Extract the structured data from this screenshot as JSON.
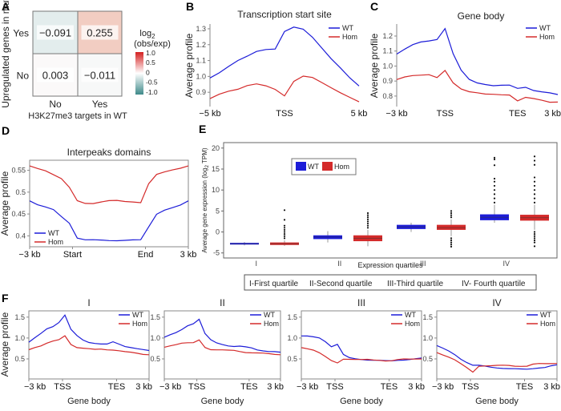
{
  "panels": {
    "a": "A",
    "b": "B",
    "c": "C",
    "d": "D",
    "e": "E",
    "f": "F"
  },
  "colors": {
    "wt": "#1c1cd8",
    "hom": "#d42a2a",
    "axis": "#8a8a8a"
  },
  "chart_data": [
    {
      "panel": "A",
      "type": "heatmap",
      "ylabel": "Upregulated genes in mut",
      "xlabel": "H3K27me3 targets in WT",
      "rows": [
        "Yes",
        "No"
      ],
      "cols": [
        "No",
        "Yes"
      ],
      "values": [
        [
          "−0.091",
          "0.255"
        ],
        [
          "0.003",
          "−0.011"
        ]
      ],
      "colorbar": {
        "title_main": "log",
        "title_sub": "2",
        "title_paren": "(obs/exp)",
        "ticks": [
          "1.0",
          "0.5",
          "0",
          "-0.5",
          "-1.0"
        ],
        "range": [
          -1,
          1
        ],
        "low": "#3e8a8a",
        "mid": "#ffffff",
        "high": "#d42020"
      }
    },
    {
      "panel": "B",
      "type": "line",
      "title": "Transcription start site",
      "ylabel": "Average profile",
      "xticks": [
        "−5 kb",
        "TSS",
        "5 kb"
      ],
      "yticks": [
        "1.3",
        "1.2",
        "1.1",
        "1.0",
        "0.9"
      ],
      "ylim": [
        0.81,
        1.33
      ],
      "legend": "top-right",
      "series": [
        {
          "name": "WT",
          "y": [
            0.99,
            1.02,
            1.06,
            1.1,
            1.13,
            1.16,
            1.17,
            1.17,
            1.28,
            1.31,
            1.3,
            1.25,
            1.18,
            1.11,
            1.05,
            0.99,
            0.94
          ]
        },
        {
          "name": "Hom",
          "y": [
            0.86,
            0.89,
            0.91,
            0.92,
            0.94,
            0.95,
            0.94,
            0.92,
            0.88,
            0.97,
            1.0,
            0.99,
            0.96,
            0.93,
            0.9,
            0.87,
            0.84
          ]
        }
      ]
    },
    {
      "panel": "C",
      "type": "line",
      "title": "Gene body",
      "ylabel": "Average profile",
      "xticks": [
        "−3 kb",
        "TSS",
        "TES",
        "3 kb"
      ],
      "yticks": [
        "1.2",
        "1.1",
        "1.0",
        "0.9",
        "0.8"
      ],
      "ylim": [
        0.73,
        1.28
      ],
      "legend": "top-right",
      "series": [
        {
          "name": "WT",
          "y": [
            1.08,
            1.11,
            1.14,
            1.16,
            1.17,
            1.18,
            1.25,
            1.08,
            0.97,
            0.91,
            0.89,
            0.88,
            0.87,
            0.87,
            0.87,
            0.85,
            0.86,
            0.84,
            0.83,
            0.82,
            0.81
          ]
        },
        {
          "name": "Hom",
          "y": [
            0.91,
            0.93,
            0.94,
            0.94,
            0.94,
            0.92,
            0.97,
            0.89,
            0.85,
            0.83,
            0.82,
            0.81,
            0.81,
            0.81,
            0.81,
            0.77,
            0.79,
            0.78,
            0.77,
            0.76,
            0.76
          ]
        }
      ]
    },
    {
      "panel": "D",
      "type": "line",
      "title": "Interpeaks domains",
      "ylabel": "Average profile",
      "xticks": [
        "−3 kb",
        "Start",
        "End",
        "3 kb"
      ],
      "yticks": [
        "0.55",
        "0.5",
        "0.45",
        "0.4"
      ],
      "ylim": [
        0.375,
        0.573
      ],
      "legend": "bottom-left",
      "series": [
        {
          "name": "WT",
          "y": [
            0.48,
            0.47,
            0.465,
            0.46,
            0.445,
            0.43,
            0.395,
            0.39,
            0.39,
            0.39,
            0.39,
            0.39,
            0.39,
            0.39,
            0.39,
            0.42,
            0.45,
            0.46,
            0.465,
            0.47,
            0.48
          ]
        },
        {
          "name": "Hom",
          "y": [
            0.56,
            0.555,
            0.55,
            0.54,
            0.53,
            0.51,
            0.48,
            0.475,
            0.475,
            0.478,
            0.48,
            0.48,
            0.478,
            0.478,
            0.477,
            0.52,
            0.54,
            0.545,
            0.55,
            0.555,
            0.56
          ]
        }
      ]
    },
    {
      "panel": "E",
      "type": "box",
      "ylabel_main": "Average gene expression (log",
      "ylabel_sub": "2",
      "ylabel_tail": " TPM)",
      "xlabel": "Expression quartiles",
      "categories": [
        "I",
        "II",
        "III",
        "IV"
      ],
      "yticks": [
        "20",
        "15",
        "10",
        "5",
        "0",
        "-5"
      ],
      "ylim": [
        -6.2,
        21.3
      ],
      "legend": "top-left",
      "series": [
        {
          "name": "WT",
          "boxes": [
            {
              "q1": -3.0,
              "median": -2.8,
              "q3": -2.6,
              "lo": -3.2,
              "hi": -2.4,
              "outliers": []
            },
            {
              "q1": -1.7,
              "median": -1.2,
              "q3": -0.8,
              "lo": -2.5,
              "hi": 0.2,
              "outliers": []
            },
            {
              "q1": 0.7,
              "median": 1.2,
              "q3": 1.7,
              "lo": 0.0,
              "hi": 2.2,
              "outliers": []
            },
            {
              "q1": 2.8,
              "median": 3.5,
              "q3": 4.2,
              "lo": 2.2,
              "hi": 6.5,
              "outliers": [
                7,
                8,
                9,
                10,
                11,
                12,
                12.7,
                15.9,
                17.3,
                17.7
              ]
            }
          ]
        },
        {
          "name": "Hom",
          "boxes": [
            {
              "q1": -3.1,
              "median": -2.8,
              "q3": -2.5,
              "lo": -3.3,
              "hi": -2.0,
              "outliers": [
                -1.5,
                -1,
                -0.5,
                0,
                0.5,
                1,
                1.5,
                2.9,
                5.2
              ]
            },
            {
              "q1": -2.2,
              "median": -1.5,
              "q3": -0.8,
              "lo": -3.4,
              "hi": 0.5,
              "outliers": [
                1,
                1.5,
                2,
                2.5,
                3,
                3.5,
                4,
                4.5
              ]
            },
            {
              "q1": 0.5,
              "median": 1.0,
              "q3": 1.7,
              "lo": -1.0,
              "hi": 3.0,
              "outliers": [
                -3.5,
                -3,
                -2.5,
                -2,
                -1.5,
                3.5,
                4,
                4.5,
                5
              ]
            },
            {
              "q1": 2.7,
              "median": 3.4,
              "q3": 4.1,
              "lo": 0.5,
              "hi": 6.5,
              "outliers": [
                -3.4,
                -2.5,
                -2,
                -1.5,
                -1,
                -0.5,
                0,
                7,
                8,
                9,
                10,
                11,
                12,
                13,
                16,
                17,
                18
              ]
            }
          ]
        }
      ],
      "quartile_key": [
        "I-First quartile",
        "II-Second quartile",
        "III-Third quartile",
        "IV- Fourth quartile"
      ]
    },
    {
      "panel": "F",
      "type": "line",
      "ylabel": "Average profile",
      "xlabel": "Gene body",
      "xticks": [
        "−3 kb",
        "TSS",
        "TES",
        "3 kb"
      ],
      "yticks": [
        "1.5",
        "1.0",
        "0.5"
      ],
      "ylim": [
        0.02,
        1.65
      ],
      "legend": "top-right",
      "subplots": [
        {
          "title": "I",
          "series": [
            {
              "name": "WT",
              "y": [
                0.9,
                1.0,
                1.1,
                1.22,
                1.28,
                1.38,
                1.55,
                1.2,
                1.05,
                0.95,
                0.9,
                0.88,
                0.86,
                0.85,
                0.9,
                0.85,
                0.8,
                0.78,
                0.75,
                0.72,
                0.7
              ]
            },
            {
              "name": "Hom",
              "y": [
                0.72,
                0.78,
                0.82,
                0.88,
                0.92,
                0.95,
                1.05,
                0.85,
                0.78,
                0.76,
                0.74,
                0.72,
                0.73,
                0.72,
                0.72,
                0.7,
                0.67,
                0.65,
                0.63,
                0.61,
                0.6
              ]
            }
          ]
        },
        {
          "title": "II",
          "series": [
            {
              "name": "WT",
              "y": [
                1.02,
                1.07,
                1.12,
                1.2,
                1.3,
                1.35,
                1.45,
                1.1,
                0.95,
                0.88,
                0.85,
                0.82,
                0.8,
                0.8,
                0.78,
                0.76,
                0.72,
                0.7,
                0.68,
                0.67,
                0.66
              ]
            },
            {
              "name": "Hom",
              "y": [
                0.78,
                0.82,
                0.85,
                0.88,
                0.88,
                0.88,
                0.95,
                0.78,
                0.73,
                0.72,
                0.71,
                0.7,
                0.7,
                0.68,
                0.66,
                0.65,
                0.64,
                0.63,
                0.62,
                0.61,
                0.6
              ]
            }
          ]
        },
        {
          "title": "III",
          "series": [
            {
              "name": "WT",
              "y": [
                1.05,
                1.04,
                1.02,
                1.0,
                0.92,
                0.8,
                0.85,
                0.6,
                0.52,
                0.5,
                0.49,
                0.48,
                0.47,
                0.46,
                0.45,
                0.45,
                0.47,
                0.48,
                0.49,
                0.5,
                0.52
              ]
            },
            {
              "name": "Hom",
              "y": [
                0.77,
                0.75,
                0.72,
                0.65,
                0.55,
                0.45,
                0.4,
                0.5,
                0.5,
                0.49,
                0.48,
                0.48,
                0.47,
                0.47,
                0.46,
                0.46,
                0.48,
                0.49,
                0.49,
                0.5,
                0.5
              ]
            }
          ]
        },
        {
          "title": "IV",
          "series": [
            {
              "name": "WT",
              "y": [
                0.82,
                0.75,
                0.68,
                0.6,
                0.5,
                0.42,
                0.35,
                0.34,
                0.32,
                0.3,
                0.29,
                0.28,
                0.27,
                0.26,
                0.25,
                0.25,
                0.27,
                0.29,
                0.3,
                0.33,
                0.36
              ]
            },
            {
              "name": "Hom",
              "y": [
                0.65,
                0.6,
                0.55,
                0.48,
                0.38,
                0.28,
                0.18,
                0.33,
                0.34,
                0.34,
                0.34,
                0.34,
                0.34,
                0.33,
                0.33,
                0.33,
                0.37,
                0.38,
                0.38,
                0.39,
                0.39
              ]
            }
          ]
        }
      ]
    }
  ]
}
